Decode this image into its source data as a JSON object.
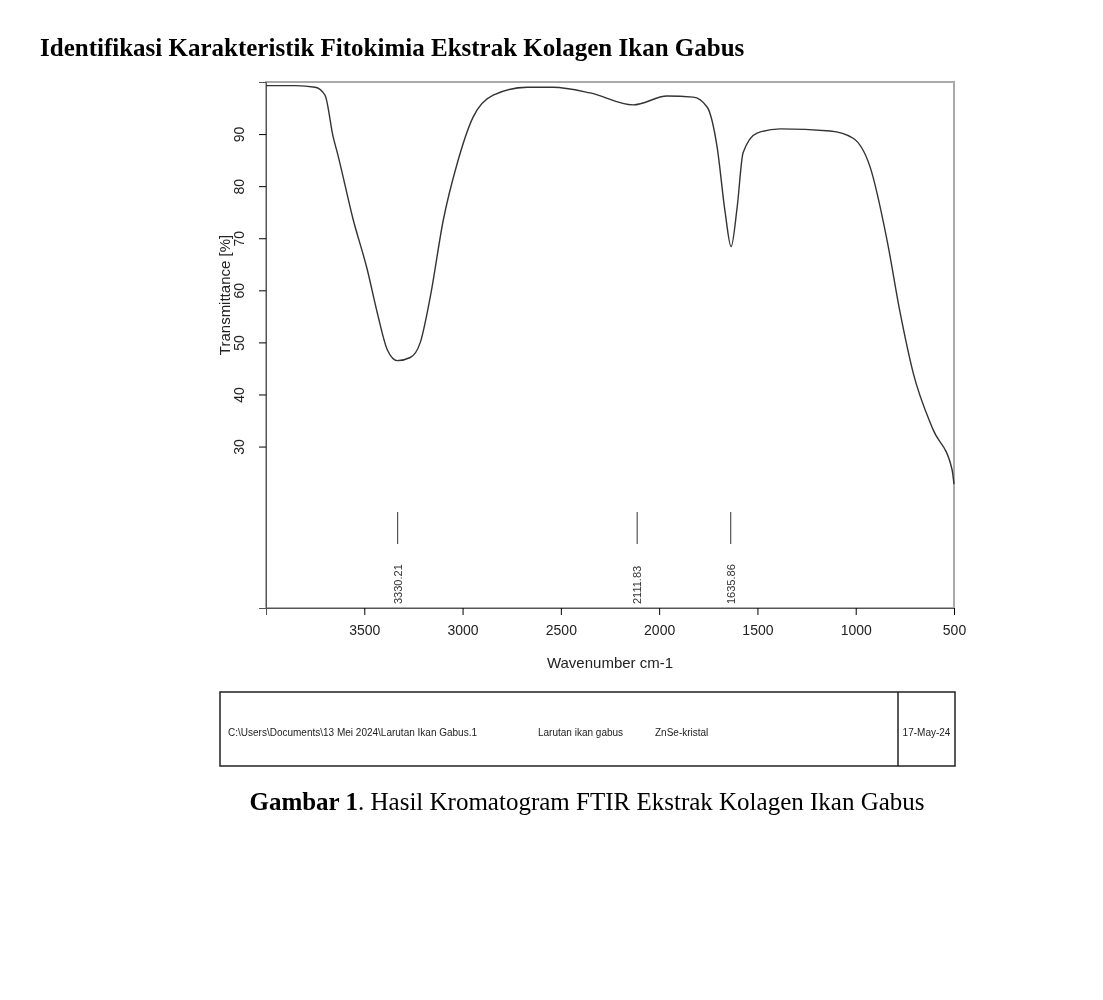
{
  "chart_data": {
    "type": "line",
    "title": "Identifikasi Karakteristik Fitokimia Ekstrak Kolagen Ikan Gabus",
    "xlabel": "Wavenumber cm-1",
    "ylabel": "Transmittance [%]",
    "xlim": [
      4000,
      500
    ],
    "ylim": [
      -1,
      100
    ],
    "xticks": [
      3500,
      3000,
      2500,
      2000,
      1500,
      1000,
      500
    ],
    "yticks": [
      30,
      40,
      50,
      60,
      70,
      80,
      90
    ],
    "grid": false,
    "marker": "none",
    "line_style": "solid",
    "series": [
      {
        "color": "#333333",
        "x": [
          4000,
          3850,
          3750,
          3700,
          3658,
          3637,
          3556,
          3485,
          3434,
          3383,
          3332,
          3266,
          3215,
          3164,
          3098,
          3027,
          2946,
          2844,
          2671,
          2539,
          2351,
          2132,
          1959,
          1827,
          1756,
          1705,
          1664,
          1634,
          1603,
          1573,
          1502,
          1385,
          1130,
          1013,
          927,
          841,
          774,
          708,
          607,
          510,
          500
        ],
        "values": [
          99.3,
          99.3,
          99.0,
          97.5,
          89.4,
          86.4,
          73.5,
          64.0,
          55.7,
          48.6,
          46.5,
          47.1,
          50.0,
          58.8,
          73.5,
          84.4,
          93.3,
          97.5,
          99.0,
          99.0,
          97.9,
          95.6,
          97.3,
          97.1,
          95.2,
          87.5,
          74.9,
          68.4,
          76.0,
          86.4,
          90.2,
          91.0,
          90.6,
          89.2,
          83.7,
          69.7,
          55.7,
          44.2,
          33.3,
          25.6,
          22.8
        ]
      }
    ],
    "annotations": [
      "3330.21",
      "2111.83",
      "1635.86",
      "C:\\Users\\Documents\\13 Mei 2024\\Larutan Ikan Gabus.1",
      "Larutan ikan gabus",
      "ZnSe-kristal",
      "17-May-24",
      "Gambar 1. Hasil Kromatogram FTIR Ekstrak Kolagen Ikan Gabus"
    ]
  }
}
